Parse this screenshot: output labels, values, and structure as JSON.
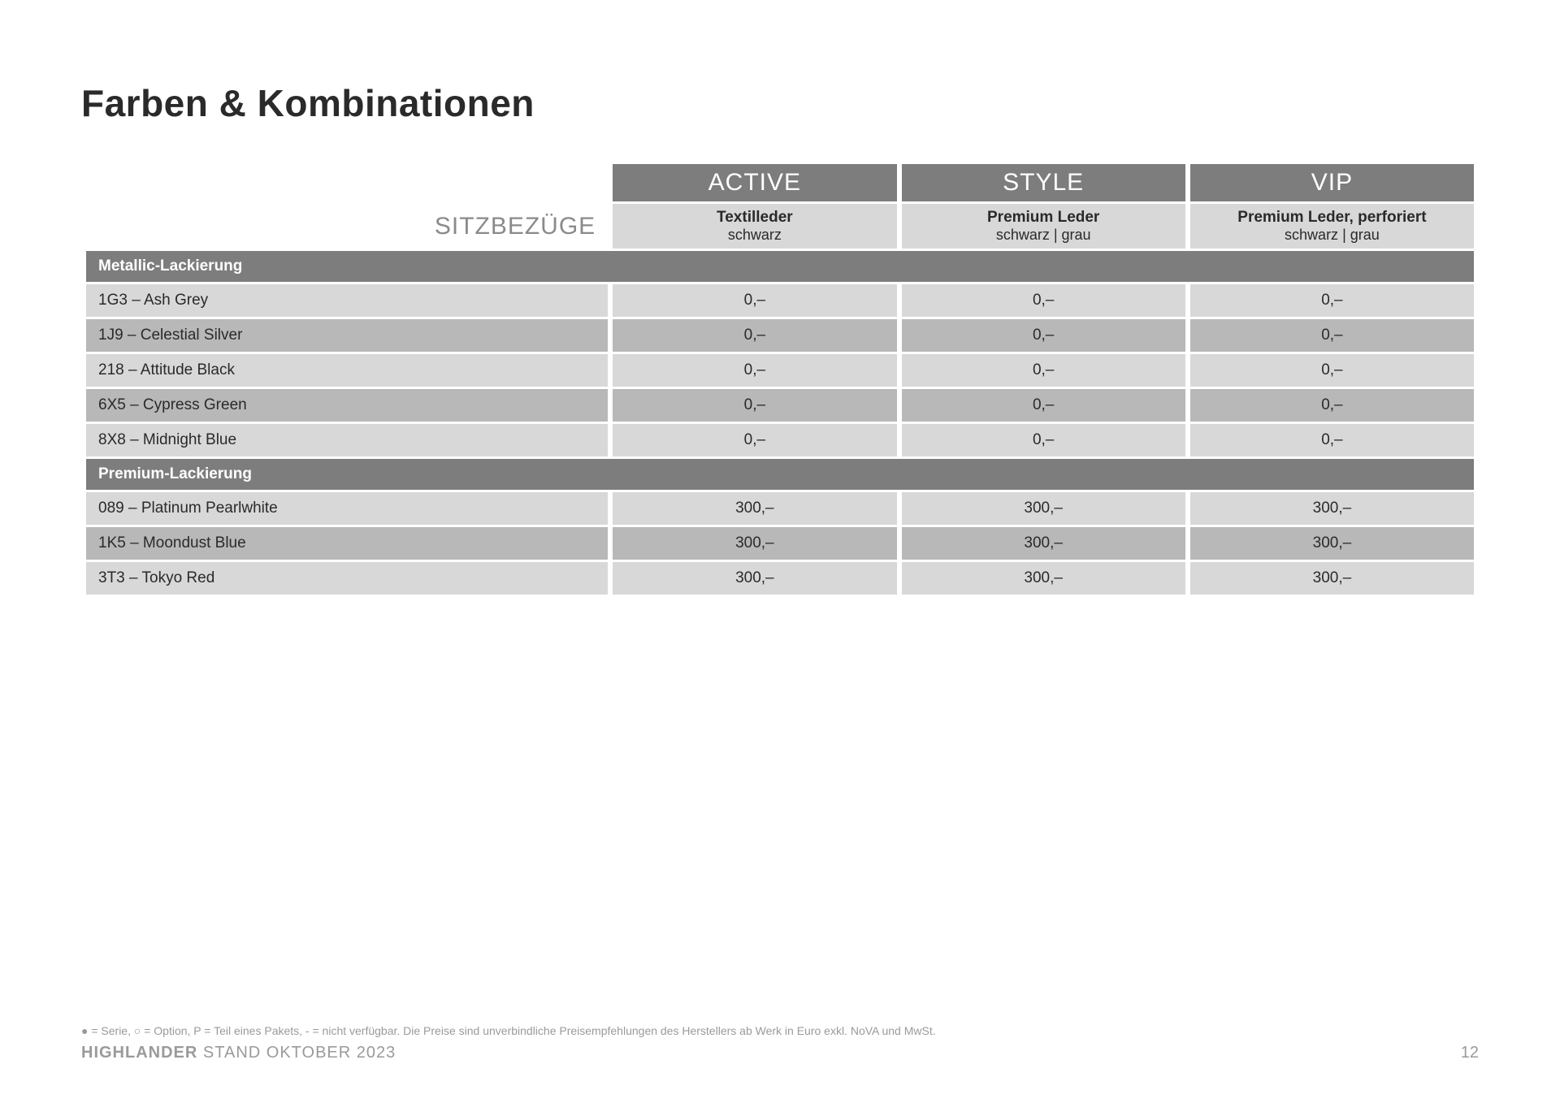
{
  "title": "Farben & Kombinationen",
  "sitzLabel": "SITZBEZÜGE",
  "trims": [
    {
      "name": "ACTIVE",
      "material": "Textilleder",
      "colors": "schwarz"
    },
    {
      "name": "STYLE",
      "material": "Premium Leder",
      "colors": "schwarz | grau"
    },
    {
      "name": "VIP",
      "material": "Premium Leder, perforiert",
      "colors": "schwarz | grau"
    }
  ],
  "sections": [
    {
      "header": "Metallic-Lackierung",
      "rows": [
        {
          "label": "1G3 – Ash Grey",
          "values": [
            "0,–",
            "0,–",
            "0,–"
          ]
        },
        {
          "label": "1J9 – Celestial Silver",
          "values": [
            "0,–",
            "0,–",
            "0,–"
          ]
        },
        {
          "label": "218 – Attitude Black",
          "values": [
            "0,–",
            "0,–",
            "0,–"
          ]
        },
        {
          "label": "6X5 – Cypress Green",
          "values": [
            "0,–",
            "0,–",
            "0,–"
          ]
        },
        {
          "label": "8X8 – Midnight Blue",
          "values": [
            "0,–",
            "0,–",
            "0,–"
          ]
        }
      ]
    },
    {
      "header": "Premium-Lackierung",
      "rows": [
        {
          "label": "089 – Platinum Pearlwhite",
          "values": [
            "300,–",
            "300,–",
            "300,–"
          ]
        },
        {
          "label": "1K5 – Moondust Blue",
          "values": [
            "300,–",
            "300,–",
            "300,–"
          ]
        },
        {
          "label": "3T3 – Tokyo Red",
          "values": [
            "300,–",
            "300,–",
            "300,–"
          ]
        }
      ]
    }
  ],
  "footnote": "● = Serie, ○ = Option, P = Teil eines Pakets, - = nicht verfügbar. Die Preise sind unverbindliche Preisempfehlungen des Herstellers ab Werk in Euro exkl. NoVA und MwSt.",
  "productBold": "HIGHLANDER",
  "productRest": " STAND OKTOBER 2023",
  "pageNum": "12",
  "colors": {
    "headerBg": "#7d7d7d",
    "headerText": "#ffffff",
    "lightRow": "#d8d8d8",
    "darkRow": "#b8b8b8",
    "text": "#2a2a2a",
    "muted": "#9a9a9a"
  }
}
